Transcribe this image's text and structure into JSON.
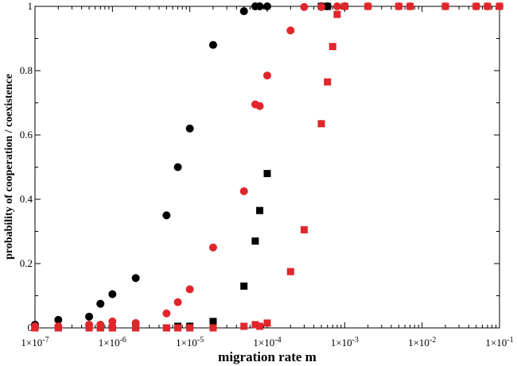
{
  "chart_data": {
    "type": "scatter",
    "title": "",
    "xlabel": "migration rate m",
    "ylabel": "probability of cooperation / coexistence",
    "x_scale": "log",
    "xlim": [
      1e-07,
      0.1
    ],
    "ylim": [
      0,
      1
    ],
    "grid": false,
    "legend": "none",
    "x_ticks": [
      {
        "value": 1e-07,
        "base": "1×10",
        "exp": "-7"
      },
      {
        "value": 1e-06,
        "base": "1×10",
        "exp": "-6"
      },
      {
        "value": 1e-05,
        "base": "1×10",
        "exp": "-5"
      },
      {
        "value": 0.0001,
        "base": "1×10",
        "exp": "-4"
      },
      {
        "value": 0.001,
        "base": "1×10",
        "exp": "-3"
      },
      {
        "value": 0.01,
        "base": "1×10",
        "exp": "-2"
      },
      {
        "value": 0.1,
        "base": "1×10",
        "exp": "-1"
      }
    ],
    "y_ticks": [
      {
        "value": 0,
        "label": "0"
      },
      {
        "value": 0.2,
        "label": "0.2"
      },
      {
        "value": 0.4,
        "label": "0.4"
      },
      {
        "value": 0.6,
        "label": "0.6"
      },
      {
        "value": 0.8,
        "label": "0.8"
      },
      {
        "value": 1,
        "label": "1"
      }
    ],
    "series": [
      {
        "color": "#000000",
        "marker": "circle",
        "points": [
          [
            1e-07,
            0.01
          ],
          [
            2e-07,
            0.025
          ],
          [
            5e-07,
            0.035
          ],
          [
            7e-07,
            0.075
          ],
          [
            1e-06,
            0.105
          ],
          [
            2e-06,
            0.155
          ],
          [
            5e-06,
            0.35
          ],
          [
            7e-06,
            0.5
          ],
          [
            1e-05,
            0.62
          ],
          [
            2e-05,
            0.88
          ],
          [
            5e-05,
            0.985
          ],
          [
            7e-05,
            1
          ],
          [
            8e-05,
            1
          ],
          [
            0.0001,
            1
          ],
          [
            0.0005,
            1
          ],
          [
            0.0006,
            1
          ],
          [
            0.001,
            1
          ]
        ]
      },
      {
        "color": "#000000",
        "marker": "square",
        "points": [
          [
            1e-07,
            0
          ],
          [
            2e-07,
            0
          ],
          [
            5e-07,
            0
          ],
          [
            7e-07,
            0
          ],
          [
            1e-06,
            0
          ],
          [
            2e-06,
            0
          ],
          [
            5e-06,
            0
          ],
          [
            7e-06,
            0.005
          ],
          [
            1e-05,
            0.005
          ],
          [
            2e-05,
            0.02
          ],
          [
            5e-05,
            0.13
          ],
          [
            7e-05,
            0.27
          ],
          [
            8e-05,
            0.365
          ],
          [
            0.0001,
            0.48
          ],
          [
            0.0005,
            1
          ],
          [
            0.0006,
            1
          ],
          [
            0.001,
            1
          ]
        ]
      },
      {
        "color": "#e0262b",
        "marker": "circle",
        "points": [
          [
            1e-07,
            0.005
          ],
          [
            2e-07,
            0.005
          ],
          [
            5e-07,
            0.01
          ],
          [
            7e-07,
            0.01
          ],
          [
            1e-06,
            0.02
          ],
          [
            2e-06,
            0.015
          ],
          [
            5e-06,
            0.045
          ],
          [
            7e-06,
            0.08
          ],
          [
            1e-05,
            0.12
          ],
          [
            2e-05,
            0.25
          ],
          [
            5e-05,
            0.425
          ],
          [
            7e-05,
            0.695
          ],
          [
            8e-05,
            0.69
          ],
          [
            0.0001,
            0.785
          ],
          [
            0.0002,
            0.925
          ],
          [
            0.0003,
            0.998
          ],
          [
            0.0005,
            0.998
          ],
          [
            0.0008,
            1
          ],
          [
            0.002,
            1
          ],
          [
            0.005,
            1
          ],
          [
            0.007,
            1
          ],
          [
            0.02,
            1
          ],
          [
            0.05,
            1
          ],
          [
            0.07,
            1
          ],
          [
            0.1,
            1
          ]
        ]
      },
      {
        "color": "#e0262b",
        "marker": "square",
        "points": [
          [
            1e-07,
            0
          ],
          [
            2e-07,
            0
          ],
          [
            5e-07,
            0
          ],
          [
            7e-07,
            0
          ],
          [
            1e-06,
            0
          ],
          [
            2e-06,
            0
          ],
          [
            5e-06,
            0
          ],
          [
            7e-06,
            0
          ],
          [
            1e-05,
            0
          ],
          [
            2e-05,
            0
          ],
          [
            5e-05,
            0.005
          ],
          [
            7e-05,
            0.01
          ],
          [
            8e-05,
            0.005
          ],
          [
            0.0001,
            0.015
          ],
          [
            0.0002,
            0.175
          ],
          [
            0.0003,
            0.305
          ],
          [
            0.0005,
            0.635
          ],
          [
            0.0006,
            0.765
          ],
          [
            0.0007,
            0.875
          ],
          [
            0.0008,
            0.975
          ],
          [
            0.001,
            1
          ],
          [
            0.002,
            1
          ],
          [
            0.005,
            1
          ],
          [
            0.007,
            1
          ],
          [
            0.02,
            1
          ],
          [
            0.05,
            1
          ],
          [
            0.07,
            1
          ],
          [
            0.1,
            1
          ]
        ]
      }
    ]
  }
}
